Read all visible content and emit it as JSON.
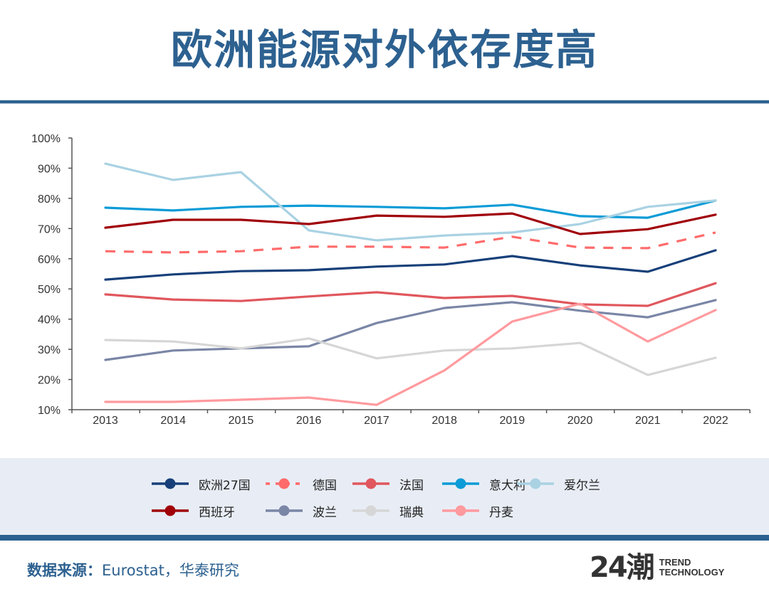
{
  "page": {
    "title": "欧洲能源对外依存度高",
    "source_label": "数据来源：",
    "source_text": "Eurostat，华泰研究",
    "logo_mark": "24潮",
    "logo_line1": "TREND",
    "logo_line2": "TECHNOLOGY"
  },
  "chart_data": {
    "type": "line",
    "title": "",
    "xlabel": "",
    "ylabel": "",
    "categories": [
      "2013",
      "2014",
      "2015",
      "2016",
      "2017",
      "2018",
      "2019",
      "2020",
      "2021",
      "2022"
    ],
    "ylim": [
      10,
      100
    ],
    "yticks": [
      10,
      20,
      30,
      40,
      50,
      60,
      70,
      80,
      90,
      100
    ],
    "ytick_labels": [
      "10%",
      "20%",
      "30%",
      "40%",
      "50%",
      "60%",
      "70%",
      "80%",
      "90%",
      "100%"
    ],
    "grid": false,
    "legend_placement": "bottom",
    "series": [
      {
        "name": "欧洲27国",
        "color": "#17407a",
        "dash": false,
        "values": [
          53.1,
          54.8,
          55.9,
          56.2,
          57.4,
          58.1,
          60.9,
          57.8,
          55.7,
          62.8
        ]
      },
      {
        "name": "德国",
        "color": "#ff6b6b",
        "dash": true,
        "values": [
          62.5,
          62.1,
          62.5,
          64.0,
          64.0,
          63.7,
          67.3,
          63.7,
          63.5,
          68.7
        ]
      },
      {
        "name": "法国",
        "color": "#e0575d",
        "dash": false,
        "values": [
          48.2,
          46.5,
          46.0,
          47.5,
          48.9,
          47.0,
          47.7,
          44.9,
          44.4,
          51.9
        ]
      },
      {
        "name": "意大利",
        "color": "#0b9bd7",
        "dash": false,
        "values": [
          76.9,
          76.0,
          77.2,
          77.6,
          77.2,
          76.7,
          77.9,
          74.1,
          73.6,
          79.3
        ]
      },
      {
        "name": "爱尔兰",
        "color": "#a9d2e3",
        "dash": false,
        "values": [
          91.5,
          86.1,
          88.7,
          69.4,
          66.1,
          67.7,
          68.7,
          71.5,
          77.2,
          79.3
        ]
      },
      {
        "name": "西班牙",
        "color": "#a00008",
        "dash": false,
        "values": [
          70.3,
          72.9,
          72.9,
          71.5,
          74.3,
          73.9,
          75.0,
          68.2,
          69.8,
          74.6
        ]
      },
      {
        "name": "波兰",
        "color": "#7a86a6",
        "dash": false,
        "values": [
          26.5,
          29.6,
          30.3,
          31.0,
          38.7,
          43.7,
          45.6,
          42.8,
          40.6,
          46.3
        ]
      },
      {
        "name": "瑞典",
        "color": "#d6d6d6",
        "dash": false,
        "values": [
          33.1,
          32.6,
          30.3,
          33.6,
          27.0,
          29.6,
          30.3,
          32.1,
          21.5,
          27.2
        ]
      },
      {
        "name": "丹麦",
        "color": "#ff9a9e",
        "dash": false,
        "values": [
          12.6,
          12.6,
          13.3,
          14.0,
          11.6,
          23.0,
          39.2,
          45.1,
          32.6,
          43.0
        ]
      }
    ]
  }
}
